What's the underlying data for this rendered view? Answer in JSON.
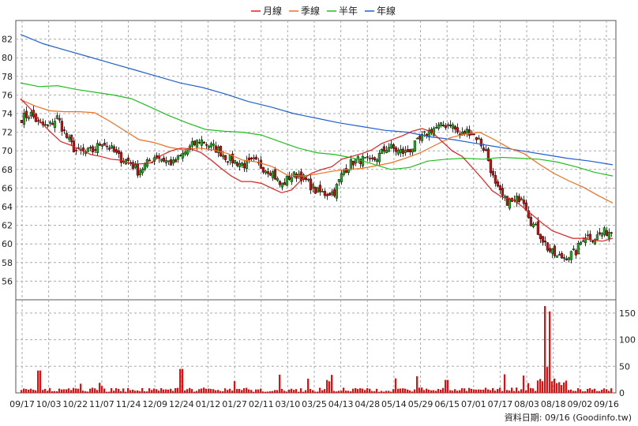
{
  "chart_data": {
    "type": "candlestick",
    "legend": {
      "position": "top-center",
      "items": [
        {
          "label": "月線",
          "color": "#e02020"
        },
        {
          "label": "季線",
          "color": "#f07020"
        },
        {
          "label": "半年",
          "color": "#20c020"
        },
        {
          "label": "年線",
          "color": "#2060d0"
        }
      ]
    },
    "price_axis": {
      "ticks": [
        56,
        58,
        60,
        62,
        64,
        66,
        68,
        70,
        72,
        74,
        76,
        78,
        80,
        82
      ],
      "side": "left",
      "range": [
        54,
        84
      ]
    },
    "volume_axis": {
      "ticks": [
        0,
        50,
        100,
        150
      ],
      "side": "right",
      "range": [
        0,
        175
      ]
    },
    "x_ticks": [
      "09/17",
      "10/03",
      "10/22",
      "11/07",
      "11/24",
      "12/09",
      "12/24",
      "01/12",
      "01/27",
      "02/11",
      "03/10",
      "03/25",
      "04/13",
      "04/28",
      "05/14",
      "05/29",
      "06/15",
      "07/01",
      "07/17",
      "08/03",
      "08/18",
      "09/02",
      "09/16"
    ],
    "footer": "資料日期: 09/16 (Goodinfo.tw)",
    "up_color": "#20b020",
    "down_color": "#d01010",
    "ma_lines": [
      {
        "name": "年線",
        "color": "#2060d0",
        "values": [
          82.5,
          81.5,
          80.8,
          80.1,
          79.4,
          78.7,
          78.0,
          77.3,
          76.8,
          76.1,
          75.3,
          74.7,
          74.0,
          73.5,
          73.0,
          72.6,
          72.2,
          72.0,
          71.5,
          71.2,
          70.8,
          70.4,
          70.0,
          69.6,
          69.2,
          68.9,
          68.5
        ]
      },
      {
        "name": "半年",
        "color": "#20c020",
        "values": [
          77.3,
          76.9,
          77.0,
          76.6,
          76.3,
          76.0,
          75.6,
          74.7,
          73.8,
          73.0,
          72.3,
          72.1,
          72.0,
          71.7,
          71.0,
          70.3,
          69.8,
          69.6,
          69.2,
          68.6,
          68.0,
          68.2,
          68.9,
          69.1,
          69.2,
          69.1,
          69.3,
          69.2,
          69.1,
          68.8,
          68.3,
          67.7,
          67.3
        ]
      },
      {
        "name": "季線",
        "color": "#f07020",
        "values": [
          75.5,
          74.8,
          74.3,
          74.2,
          74.2,
          74.1,
          73.2,
          72.2,
          71.2,
          70.9,
          70.4,
          70.1,
          70.3,
          70.1,
          69.7,
          69.0,
          68.8,
          68.3,
          67.4,
          67.3,
          67.5,
          67.8,
          68.0,
          68.1,
          68.4,
          68.7,
          69.2,
          69.8,
          70.6,
          71.4,
          71.8,
          72.0,
          71.2,
          70.3,
          69.7,
          68.6,
          67.6,
          66.8,
          66.1,
          65.2,
          64.4
        ]
      },
      {
        "name": "月線",
        "color": "#e02020",
        "values": [
          75.6,
          74.5,
          73.1,
          72.0,
          71.0,
          70.6,
          70.1,
          69.6,
          69.4,
          69.1,
          69.0,
          68.6,
          68.6,
          68.7,
          69.5,
          70.0,
          70.3,
          70.2,
          69.8,
          69.0,
          68.1,
          67.3,
          66.7,
          66.7,
          66.5,
          66.0,
          65.5,
          65.8,
          66.9,
          67.6,
          68.0,
          68.3,
          69.1,
          69.4,
          69.7,
          70.1,
          70.8,
          71.2,
          71.6,
          72.1,
          72.4,
          72.0,
          71.0,
          70.0,
          69.4,
          68.2,
          67.0,
          65.7,
          65.0,
          64.8,
          64.0,
          63.1,
          62.2,
          61.4,
          61.0,
          60.6,
          60.6,
          60.4,
          60.3,
          60.6
        ]
      }
    ],
    "price_waypoints": [
      73.5,
      74.0,
      72.8,
      72.6,
      73.6,
      71.5,
      70.0,
      69.8,
      70.0,
      71.0,
      70.2,
      69.2,
      68.9,
      67.8,
      68.6,
      69.5,
      69.0,
      68.6,
      69.6,
      70.5,
      71.2,
      70.6,
      70.1,
      69.2,
      68.8,
      68.5,
      68.8,
      68.2,
      67.8,
      66.2,
      67.2,
      67.5,
      66.6,
      65.6,
      65.4,
      65.6,
      67.8,
      68.8,
      69.1,
      68.7,
      69.5,
      70.5,
      70.0,
      69.8,
      70.6,
      71.6,
      72.4,
      72.6,
      73.0,
      71.6,
      72.2,
      71.4,
      69.8,
      66.2,
      64.7,
      64.4,
      65.3,
      62.4,
      61.0,
      59.3,
      58.5,
      58.7,
      59.1,
      61.0,
      60.6,
      61.2,
      61.4
    ]
  }
}
